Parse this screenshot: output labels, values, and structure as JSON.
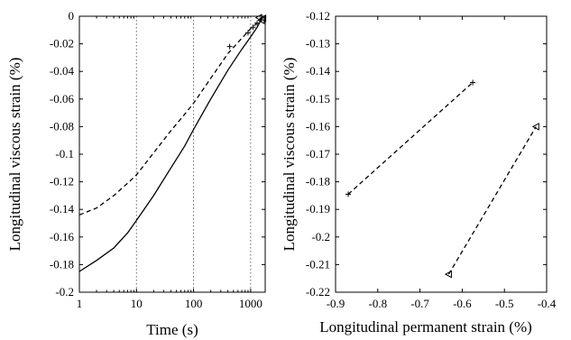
{
  "chart_data": [
    {
      "type": "line",
      "title": "",
      "xlabel": "Time (s)",
      "ylabel": "Longitudinal viscous strain (%)",
      "xscale": "log",
      "xlim": [
        1,
        1800
      ],
      "ylim": [
        -0.2,
        0
      ],
      "xticks": [
        1,
        10,
        100,
        1000
      ],
      "xtick_labels": [
        "1",
        "10",
        "100",
        "1000"
      ],
      "yticks": [
        -0.2,
        -0.18,
        -0.16,
        -0.14,
        -0.12,
        -0.1,
        -0.08,
        -0.06,
        -0.04,
        -0.02,
        0
      ],
      "ytick_labels": [
        "-0.2",
        "-0.18",
        "-0.16",
        "-0.14",
        "-0.12",
        "-0.1",
        "-0.08",
        "-0.06",
        "-0.04",
        "-0.02",
        "0"
      ],
      "reference_lines_x": [
        10,
        100,
        1000
      ],
      "grid": false,
      "series": [
        {
          "style": "solid",
          "x": [
            1,
            2,
            4,
            7,
            10,
            20,
            40,
            70,
            100,
            200,
            400,
            700,
            1000,
            1300,
            1600
          ],
          "y": [
            -0.185,
            -0.177,
            -0.168,
            -0.157,
            -0.148,
            -0.13,
            -0.11,
            -0.094,
            -0.082,
            -0.06,
            -0.039,
            -0.024,
            -0.015,
            -0.008,
            -0.001
          ]
        },
        {
          "style": "dashed",
          "x": [
            1,
            2,
            4,
            7,
            10,
            20,
            40,
            70,
            100,
            200,
            400,
            700,
            1000,
            1300,
            1600
          ],
          "y": [
            -0.144,
            -0.139,
            -0.13,
            -0.121,
            -0.115,
            -0.099,
            -0.083,
            -0.071,
            -0.063,
            -0.045,
            -0.027,
            -0.016,
            -0.009,
            -0.005,
            -0.001
          ]
        }
      ],
      "markers": [
        {
          "symbol": "triangle",
          "x": 1400,
          "y": -0.001
        },
        {
          "symbol": "triangle",
          "x": 1550,
          "y": -0.003
        },
        {
          "symbol": "triangle",
          "x": 1650,
          "y": -0.0015
        },
        {
          "symbol": "plus",
          "x": 430,
          "y": -0.022
        },
        {
          "symbol": "plus",
          "x": 900,
          "y": -0.012
        },
        {
          "symbol": "plus",
          "x": 1100,
          "y": -0.008
        },
        {
          "symbol": "plus",
          "x": 1300,
          "y": -0.005
        }
      ]
    },
    {
      "type": "line",
      "title": "",
      "xlabel": "Longitudinal permanent strain (%)",
      "ylabel": "Longitudinal viscous strain (%)",
      "xlim": [
        -0.9,
        -0.4
      ],
      "ylim": [
        -0.22,
        -0.12
      ],
      "xticks": [
        -0.9,
        -0.8,
        -0.7,
        -0.6,
        -0.5,
        -0.4
      ],
      "xtick_labels": [
        "-0.9",
        "-0.8",
        "-0.7",
        "-0.6",
        "-0.5",
        "-0.4"
      ],
      "yticks": [
        -0.22,
        -0.21,
        -0.2,
        -0.19,
        -0.18,
        -0.17,
        -0.16,
        -0.15,
        -0.14,
        -0.13,
        -0.12
      ],
      "ytick_labels": [
        "-0.22",
        "-0.21",
        "-0.2",
        "-0.19",
        "-0.18",
        "-0.17",
        "-0.16",
        "-0.15",
        "-0.14",
        "-0.13",
        "-0.12"
      ],
      "grid": false,
      "series": [
        {
          "style": "dashed",
          "marker": "plus",
          "x": [
            -0.87,
            -0.575
          ],
          "y": [
            -0.1845,
            -0.144
          ]
        },
        {
          "style": "dashed",
          "marker": "triangle",
          "x": [
            -0.632,
            -0.425
          ],
          "y": [
            -0.2135,
            -0.16
          ]
        }
      ]
    }
  ]
}
